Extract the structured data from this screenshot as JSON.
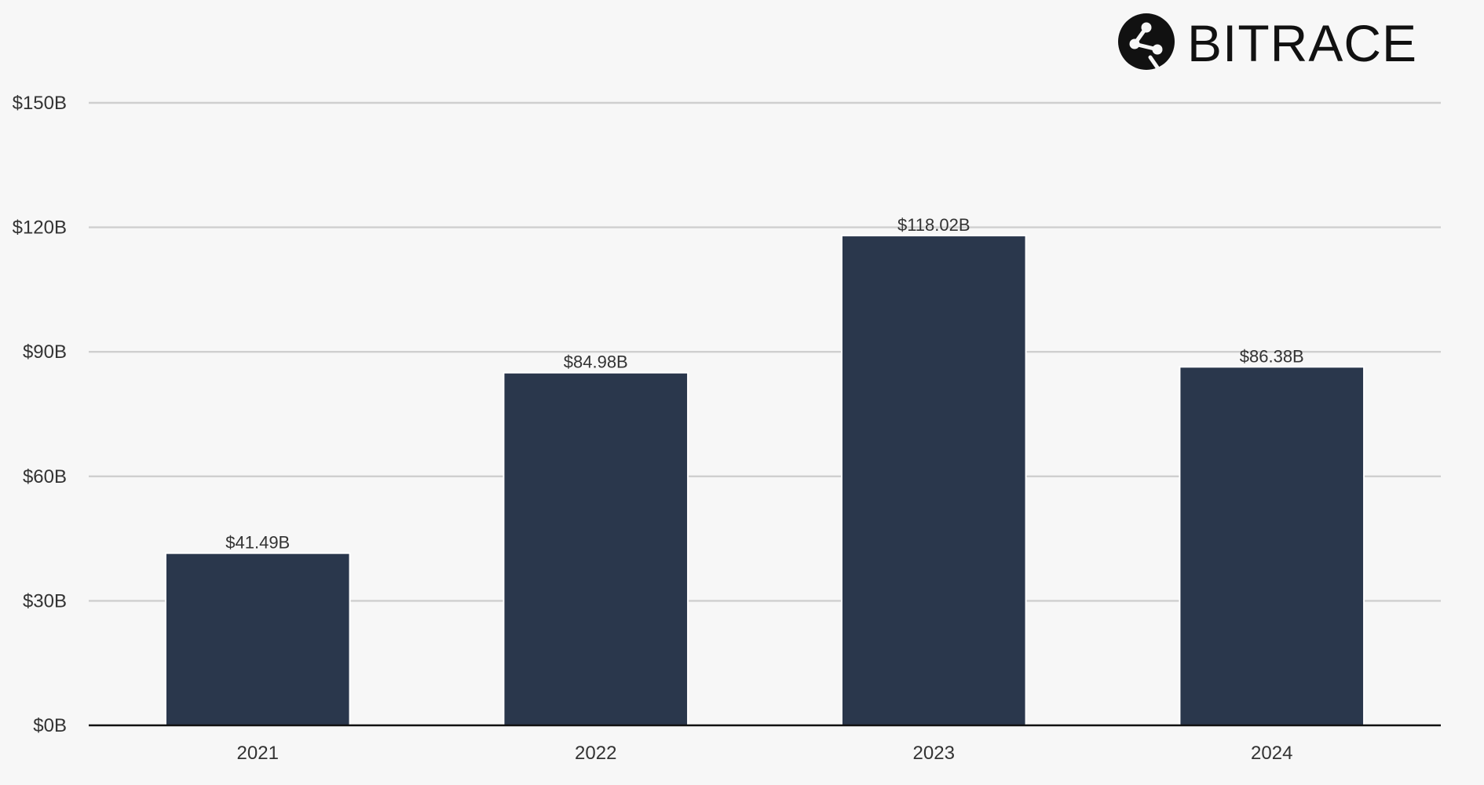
{
  "brand": {
    "name": "BITRACE",
    "icon": "bitrace-logo-icon"
  },
  "colors": {
    "background": "#f7f7f7",
    "bar": "#2a374c",
    "grid": "#cfcfcf",
    "axis": "#111111",
    "text": "#333333"
  },
  "chart_data": {
    "type": "bar",
    "title": "",
    "xlabel": "",
    "ylabel": "",
    "categories": [
      "2021",
      "2022",
      "2023",
      "2024"
    ],
    "values": [
      41.49,
      84.98,
      118.02,
      86.38
    ],
    "value_labels": [
      "$41.49B",
      "$84.98B",
      "$118.02B",
      "$86.38B"
    ],
    "ylim": [
      0,
      150
    ],
    "yticks": [
      0,
      30,
      60,
      90,
      120,
      150
    ],
    "ytick_labels": [
      "$0B",
      "$30B",
      "$60B",
      "$90B",
      "$120B",
      "$150B"
    ],
    "grid": true,
    "legend": "none"
  }
}
